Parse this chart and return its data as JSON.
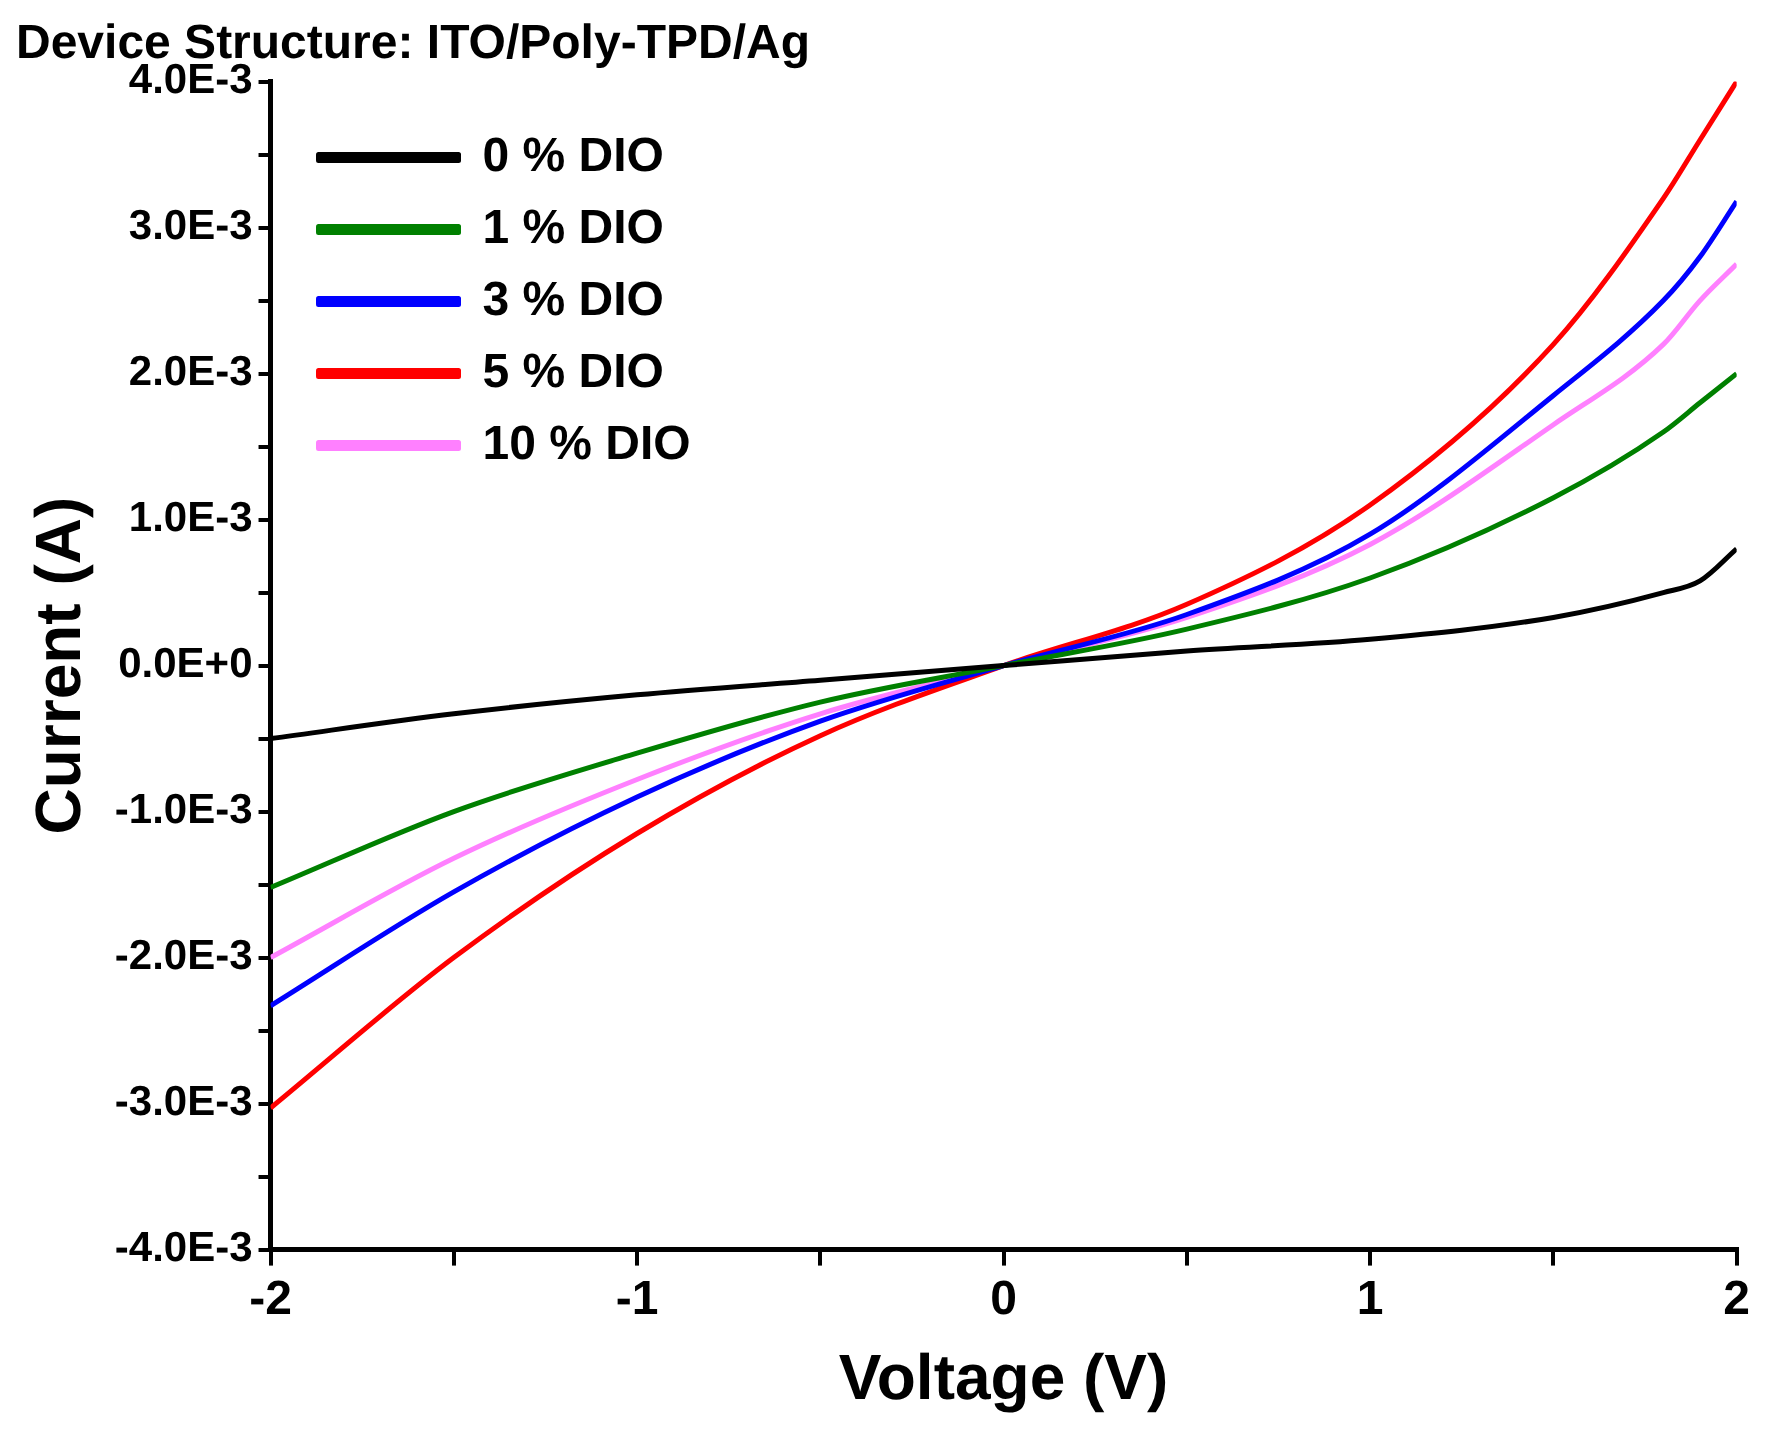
{
  "chart_data": {
    "type": "line",
    "title": "Device Structure: ITO/Poly-TPD/Ag",
    "xlabel": "Voltage (V)",
    "ylabel": "Current (A)",
    "x": [
      -2,
      -1.5,
      -1,
      -0.5,
      0,
      0.5,
      1,
      1.5,
      1.8,
      1.9,
      2
    ],
    "series": [
      {
        "name": "0 % DIO",
        "color": "#000000",
        "values": [
          -0.0005,
          -0.00033,
          -0.0002,
          -0.0001,
          0,
          0.0001,
          0.00018,
          0.00033,
          0.0005,
          0.00058,
          0.0008
        ]
      },
      {
        "name": "1 % DIO",
        "color": "#008000",
        "values": [
          -0.00152,
          -0.001,
          -0.0006,
          -0.00025,
          0,
          0.00025,
          0.0006,
          0.00115,
          0.0016,
          0.0018,
          0.002
        ]
      },
      {
        "name": "3 % DIO",
        "color": "#0000ff",
        "values": [
          -0.00233,
          -0.00155,
          -0.0009,
          -0.00038,
          0,
          0.00035,
          0.0009,
          0.00185,
          0.0025,
          0.0028,
          0.00318
        ]
      },
      {
        "name": "5 % DIO",
        "color": "#ff0000",
        "values": [
          -0.00303,
          -0.002,
          -0.00115,
          -0.00048,
          0,
          0.00042,
          0.0011,
          0.0022,
          0.0032,
          0.0036,
          0.004
        ]
      },
      {
        "name": "10 % DIO",
        "color": "#ff80ff",
        "values": [
          -0.002,
          -0.00132,
          -0.00078,
          -0.00033,
          0,
          0.00033,
          0.00083,
          0.00165,
          0.0022,
          0.0025,
          0.00275
        ]
      }
    ],
    "xlim": [
      -2,
      2
    ],
    "xticks": [
      -2,
      {
        "value": -1.5,
        "label": null
      },
      -1,
      {
        "value": -0.5,
        "label": null
      },
      0,
      {
        "value": 0.5,
        "label": null
      },
      1,
      {
        "value": 1.5,
        "label": null
      },
      2
    ],
    "ylim": [
      -0.004,
      0.004
    ],
    "yticks": [
      {
        "value": -0.004,
        "label": "-4.0E-3"
      },
      {
        "value": -0.0035,
        "label": null
      },
      {
        "value": -0.003,
        "label": "-3.0E-3"
      },
      {
        "value": -0.0025,
        "label": null
      },
      {
        "value": -0.002,
        "label": "-2.0E-3"
      },
      {
        "value": -0.0015,
        "label": null
      },
      {
        "value": -0.001,
        "label": "-1.0E-3"
      },
      {
        "value": -0.0005,
        "label": null
      },
      {
        "value": 0,
        "label": "0.0E+0"
      },
      {
        "value": 0.0005,
        "label": null
      },
      {
        "value": 0.001,
        "label": "1.0E-3"
      },
      {
        "value": 0.0015,
        "label": null
      },
      {
        "value": 0.002,
        "label": "2.0E-3"
      },
      {
        "value": 0.0025,
        "label": null
      },
      {
        "value": 0.003,
        "label": "3.0E-3"
      },
      {
        "value": 0.0035,
        "label": null
      },
      {
        "value": 0.004,
        "label": "4.0E-3"
      }
    ],
    "grid": false,
    "legend": "top left",
    "marker": "none",
    "line_style": "solid"
  }
}
